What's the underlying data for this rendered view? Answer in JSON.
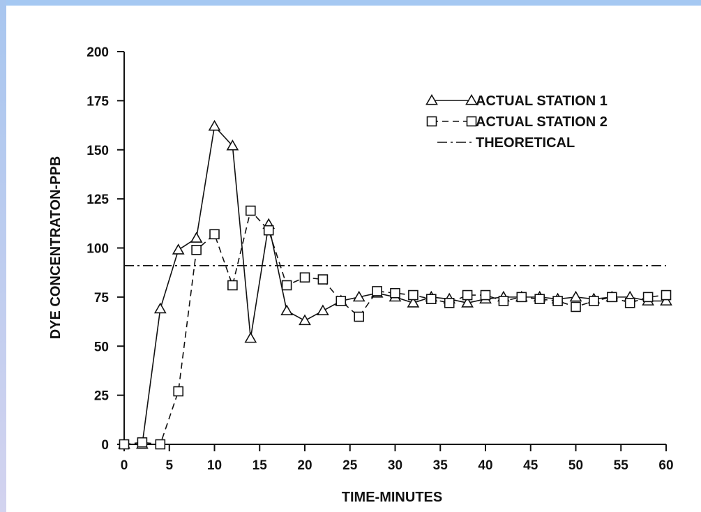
{
  "colors": {
    "frame_top": "#a5c8f2",
    "frame_left_top": "#a8c6ef",
    "frame_left_bottom": "#d3d3ef",
    "ink": "#111111"
  },
  "chart_data": {
    "type": "line",
    "xlabel": "TIME-MINUTES",
    "ylabel": "DYE CONCENTRATON-PPB",
    "xlim": [
      0,
      60
    ],
    "ylim": [
      0,
      200
    ],
    "xticks": [
      0,
      5,
      10,
      15,
      20,
      25,
      30,
      35,
      40,
      45,
      50,
      55,
      60
    ],
    "yticks": [
      0,
      25,
      50,
      75,
      100,
      125,
      150,
      175,
      200
    ],
    "grid": false,
    "legend_position": "top-right",
    "series": [
      {
        "name": "ACTUAL STATION 1",
        "marker": "triangle",
        "line": "solid",
        "x": [
          0,
          2,
          4,
          6,
          8,
          10,
          12,
          14,
          16,
          18,
          20,
          22,
          24,
          26,
          28,
          30,
          32,
          34,
          36,
          38,
          40,
          42,
          44,
          46,
          48,
          50,
          52,
          54,
          56,
          58,
          60
        ],
        "y": [
          0,
          0,
          69,
          99,
          105,
          162,
          152,
          54,
          112,
          68,
          63,
          68,
          73,
          75,
          77,
          75,
          72,
          75,
          74,
          72,
          74,
          75,
          75,
          75,
          74,
          75,
          74,
          75,
          75,
          73,
          73
        ]
      },
      {
        "name": "ACTUAL STATION 2",
        "marker": "square",
        "line": "dashed",
        "x": [
          0,
          2,
          4,
          6,
          8,
          10,
          12,
          14,
          16,
          18,
          20,
          22,
          24,
          26,
          28,
          30,
          32,
          34,
          36,
          38,
          40,
          42,
          44,
          46,
          48,
          50,
          52,
          54,
          56,
          58,
          60
        ],
        "y": [
          0,
          1,
          0,
          27,
          99,
          107,
          81,
          119,
          109,
          81,
          85,
          84,
          73,
          65,
          78,
          77,
          76,
          74,
          72,
          76,
          76,
          73,
          75,
          74,
          73,
          70,
          73,
          75,
          72,
          75,
          76
        ]
      },
      {
        "name": "THEORETICAL",
        "marker": "none",
        "line": "dash-dot",
        "x": [
          0,
          60
        ],
        "y": [
          91,
          91
        ]
      }
    ]
  }
}
